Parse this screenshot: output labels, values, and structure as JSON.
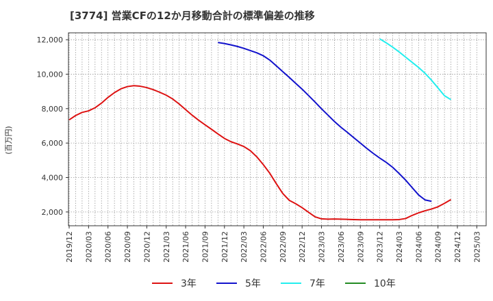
{
  "chart_data": {
    "type": "line",
    "title": "[3774]  営業CFの12か月移動合計の標準偏差の推移",
    "xlabel": "",
    "ylabel": "(百万円)",
    "ylim": [
      1200,
      12400
    ],
    "yticks": [
      2000,
      4000,
      6000,
      8000,
      10000,
      12000
    ],
    "ytick_labels": [
      "2,000",
      "4,000",
      "6,000",
      "8,000",
      "10,000",
      "12,000"
    ],
    "x_categories": [
      "2019/12",
      "2020/01",
      "2020/02",
      "2020/03",
      "2020/04",
      "2020/05",
      "2020/06",
      "2020/07",
      "2020/08",
      "2020/09",
      "2020/10",
      "2020/11",
      "2020/12",
      "2021/01",
      "2021/02",
      "2021/03",
      "2021/04",
      "2021/05",
      "2021/06",
      "2021/07",
      "2021/08",
      "2021/09",
      "2021/10",
      "2021/11",
      "2021/12",
      "2022/01",
      "2022/02",
      "2022/03",
      "2022/04",
      "2022/05",
      "2022/06",
      "2022/07",
      "2022/08",
      "2022/09",
      "2022/10",
      "2022/11",
      "2022/12",
      "2023/01",
      "2023/02",
      "2023/03",
      "2023/04",
      "2023/05",
      "2023/06",
      "2023/07",
      "2023/08",
      "2023/09",
      "2023/10",
      "2023/11",
      "2023/12",
      "2024/01",
      "2024/02",
      "2024/03",
      "2024/04",
      "2024/05",
      "2024/06",
      "2024/07",
      "2024/08",
      "2024/09",
      "2024/10",
      "2024/11",
      "2024/12",
      "2025/01",
      "2025/02",
      "2025/03"
    ],
    "x_tick_labels": [
      "2019/12",
      "2020/03",
      "2020/06",
      "2020/09",
      "2020/12",
      "2021/03",
      "2021/06",
      "2021/09",
      "2021/12",
      "2022/03",
      "2022/06",
      "2022/09",
      "2022/12",
      "2023/03",
      "2023/06",
      "2023/09",
      "2023/12",
      "2024/03",
      "2024/06",
      "2024/09",
      "2024/12",
      "2025/03"
    ],
    "grid": true,
    "legend_position": "bottom",
    "series": [
      {
        "name": "3年",
        "color": "#dd1111",
        "start": "2019/12",
        "values": [
          7350,
          7600,
          7780,
          7870,
          8050,
          8320,
          8650,
          8930,
          9150,
          9280,
          9330,
          9300,
          9220,
          9100,
          8950,
          8780,
          8560,
          8270,
          7940,
          7620,
          7330,
          7060,
          6800,
          6530,
          6270,
          6080,
          5950,
          5800,
          5560,
          5200,
          4750,
          4250,
          3650,
          3080,
          2680,
          2480,
          2250,
          1980,
          1720,
          1600,
          1580,
          1590,
          1580,
          1570,
          1560,
          1550,
          1550,
          1550,
          1550,
          1550,
          1550,
          1560,
          1620,
          1800,
          1950,
          2070,
          2170,
          2300,
          2500,
          2720
        ]
      },
      {
        "name": "5年",
        "color": "#1111cc",
        "start": "2021/11",
        "values": [
          11840,
          11780,
          11700,
          11610,
          11500,
          11370,
          11240,
          11070,
          10820,
          10490,
          10150,
          9820,
          9470,
          9130,
          8760,
          8380,
          7990,
          7620,
          7250,
          6920,
          6620,
          6310,
          6000,
          5690,
          5400,
          5130,
          4880,
          4590,
          4230,
          3850,
          3420,
          2990,
          2700,
          2620
        ]
      },
      {
        "name": "7年",
        "color": "#22eeee",
        "start": "2023/12",
        "values": [
          12050,
          11820,
          11570,
          11290,
          10990,
          10690,
          10390,
          10050,
          9650,
          9200,
          8750,
          8520
        ]
      },
      {
        "name": "10年",
        "color": "#228B22",
        "start": "",
        "values": []
      }
    ]
  }
}
